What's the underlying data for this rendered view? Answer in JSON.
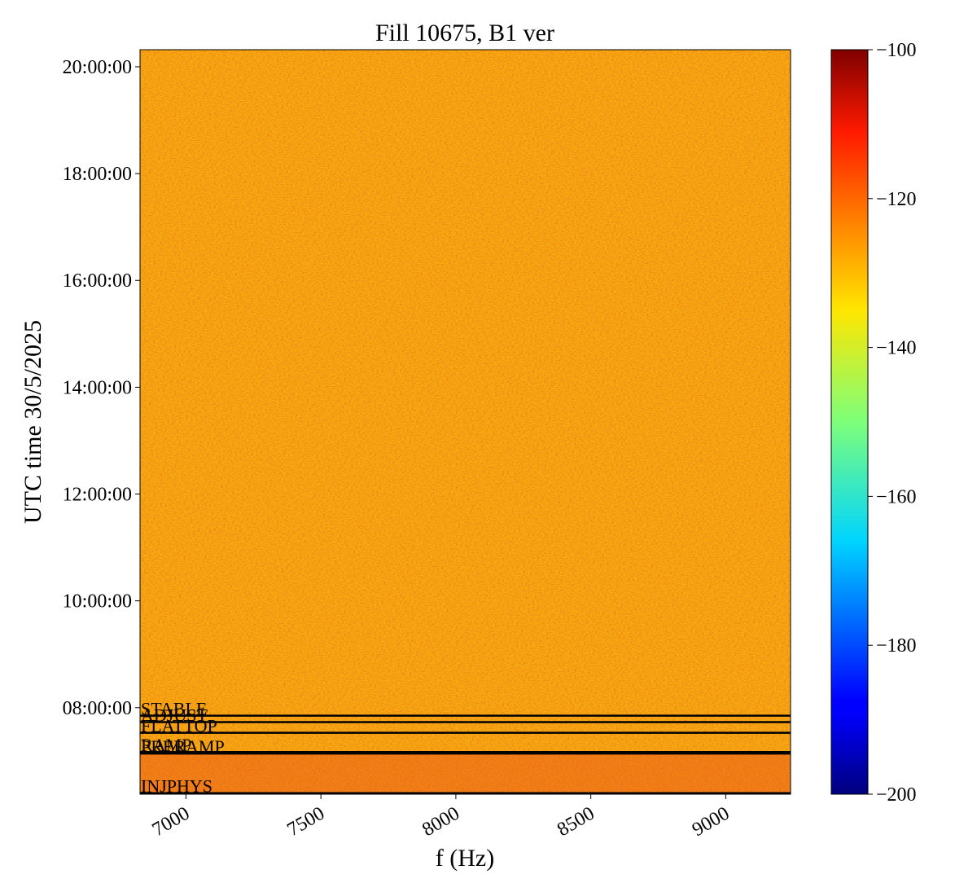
{
  "chart_data": {
    "type": "spectrogram",
    "title": "Fill 10675, B1 ver",
    "x_label": "f (Hz)",
    "y_label": "UTC time 30/5/2025",
    "xlim": [
      6830,
      9240
    ],
    "xticks": [
      7000,
      7500,
      8000,
      8500,
      9000
    ],
    "ylim": [
      6.38,
      20.32
    ],
    "yticks": [
      {
        "value": 8,
        "label": "08:00:00"
      },
      {
        "value": 10,
        "label": "10:00:00"
      },
      {
        "value": 12,
        "label": "12:00:00"
      },
      {
        "value": 14,
        "label": "14:00:00"
      },
      {
        "value": 16,
        "label": "16:00:00"
      },
      {
        "value": 18,
        "label": "18:00:00"
      },
      {
        "value": 20,
        "label": "20:00:00"
      }
    ],
    "colorbar": {
      "colormap": "jet",
      "lim": [
        -200,
        -100
      ],
      "ticks": [
        {
          "value": -100,
          "label": "−100"
        },
        {
          "value": -120,
          "label": "−120"
        },
        {
          "value": -140,
          "label": "−140"
        },
        {
          "value": -160,
          "label": "−160"
        },
        {
          "value": -180,
          "label": "−180"
        },
        {
          "value": -200,
          "label": "−200"
        }
      ]
    },
    "beam_modes": [
      {
        "label": "STABLE",
        "time": 7.85
      },
      {
        "label": "ADJUST",
        "time": 7.73
      },
      {
        "label": "FLATTOP",
        "time": 7.53
      },
      {
        "label": "RAMP",
        "time": 7.17
      },
      {
        "label": "PRERAMP",
        "time": 7.14
      },
      {
        "label": "INJPHYS",
        "time": 6.4
      }
    ]
  }
}
